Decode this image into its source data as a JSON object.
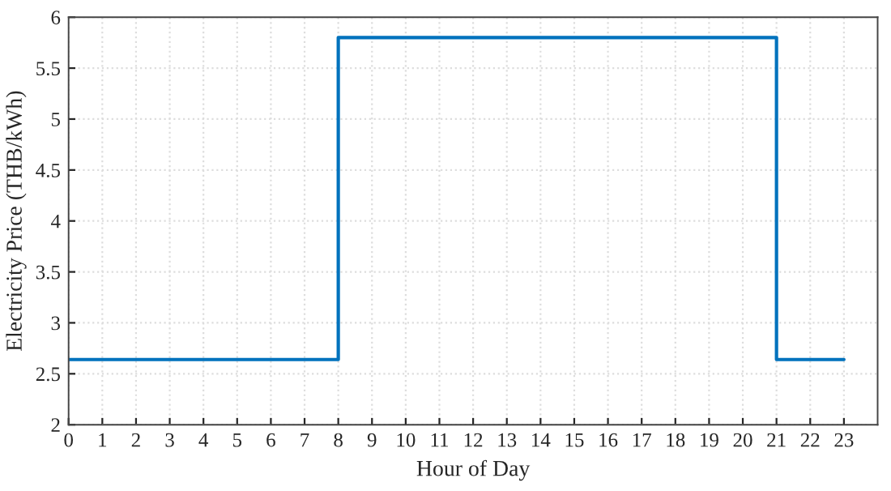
{
  "chart_data": {
    "type": "step",
    "xlabel": "Hour of Day",
    "ylabel": "Electricity Price (THB/kWh)",
    "x": [
      0,
      8,
      21,
      23
    ],
    "series": [
      {
        "color": "#0072bd",
        "values": [
          2.64,
          5.8,
          2.64,
          2.64
        ]
      }
    ],
    "xlim": [
      0,
      24
    ],
    "xticks": [
      0,
      1,
      2,
      3,
      4,
      5,
      6,
      7,
      8,
      9,
      10,
      11,
      12,
      13,
      14,
      15,
      16,
      17,
      18,
      19,
      20,
      21,
      22,
      23
    ],
    "ylim": [
      2,
      6
    ],
    "yticks": [
      2,
      2.5,
      3,
      3.5,
      4,
      4.5,
      5,
      5.5,
      6
    ],
    "grid": true
  }
}
